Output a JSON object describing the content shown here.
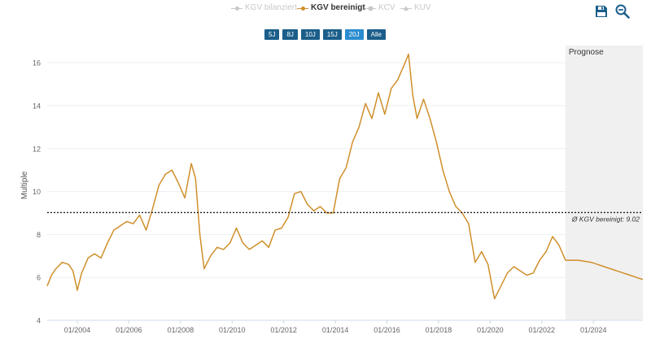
{
  "legend": [
    {
      "label": "KGV bilanziert",
      "active": false,
      "marker": "circle"
    },
    {
      "label": "KGV bereinigt",
      "active": true,
      "marker": "circle"
    },
    {
      "label": "KCV",
      "active": false,
      "marker": "square"
    },
    {
      "label": "KUV",
      "active": false,
      "marker": "triangle"
    }
  ],
  "toolbar": {
    "save_icon": "save-icon",
    "zoom_icon": "zoom-out-icon"
  },
  "ranges": [
    "5J",
    "8J",
    "10J",
    "15J",
    "20J",
    "Alle"
  ],
  "selected_range": "20J",
  "colors": {
    "series": "#d08f2b",
    "forecast_bg": "#f0f0f0",
    "range_button": "#1b5e8a",
    "range_selected": "#2a8ccf",
    "axis": "#d9e2ee"
  },
  "chart_data": {
    "type": "line",
    "ylabel": "Multiple",
    "ylim": [
      4,
      16.8
    ],
    "xlim": [
      "2002-11",
      "2025-12"
    ],
    "yticks": [
      4,
      6,
      8,
      10,
      12,
      14,
      16
    ],
    "xtick_labels": [
      "01/2004",
      "01/2006",
      "01/2008",
      "01/2010",
      "01/2012",
      "01/2014",
      "01/2016",
      "01/2018",
      "01/2020",
      "01/2022",
      "01/2024"
    ],
    "forecast_label": "Prognose",
    "forecast_start": "2022-12",
    "average": {
      "label": "Ø KGV bereinigt: 9.02",
      "value": 9.02
    },
    "grid": true,
    "series": [
      {
        "name": "KGV bereinigt",
        "x": [
          "2002-11",
          "2003-01",
          "2003-03",
          "2003-06",
          "2003-09",
          "2003-11",
          "2004-01",
          "2004-03",
          "2004-06",
          "2004-09",
          "2004-12",
          "2005-03",
          "2005-06",
          "2005-09",
          "2005-12",
          "2006-03",
          "2006-06",
          "2006-09",
          "2006-12",
          "2007-03",
          "2007-06",
          "2007-09",
          "2007-12",
          "2008-03",
          "2008-06",
          "2008-08",
          "2008-10",
          "2008-12",
          "2009-03",
          "2009-06",
          "2009-09",
          "2009-12",
          "2010-03",
          "2010-06",
          "2010-09",
          "2010-12",
          "2011-03",
          "2011-06",
          "2011-09",
          "2011-12",
          "2012-03",
          "2012-06",
          "2012-09",
          "2012-12",
          "2013-03",
          "2013-06",
          "2013-09",
          "2013-12",
          "2014-03",
          "2014-06",
          "2014-09",
          "2014-12",
          "2015-03",
          "2015-06",
          "2015-09",
          "2015-12",
          "2016-03",
          "2016-06",
          "2016-09",
          "2016-11",
          "2017-01",
          "2017-03",
          "2017-06",
          "2017-09",
          "2017-12",
          "2018-03",
          "2018-06",
          "2018-09",
          "2018-12",
          "2019-03",
          "2019-06",
          "2019-09",
          "2019-12",
          "2020-03",
          "2020-06",
          "2020-09",
          "2020-12",
          "2021-03",
          "2021-06",
          "2021-09",
          "2021-12",
          "2022-03",
          "2022-06",
          "2022-09",
          "2022-12"
        ],
        "values": [
          5.6,
          6.1,
          6.4,
          6.7,
          6.6,
          6.3,
          5.4,
          6.2,
          6.9,
          7.1,
          6.9,
          7.6,
          8.2,
          8.4,
          8.6,
          8.5,
          8.9,
          8.2,
          9.2,
          10.3,
          10.8,
          11.0,
          10.4,
          9.7,
          11.3,
          10.6,
          8.0,
          6.4,
          7.0,
          7.4,
          7.3,
          7.6,
          8.3,
          7.6,
          7.3,
          7.5,
          7.7,
          7.4,
          8.2,
          8.3,
          8.8,
          9.9,
          10.0,
          9.4,
          9.1,
          9.3,
          9.0,
          9.0,
          10.6,
          11.1,
          12.3,
          13.0,
          14.1,
          13.4,
          14.6,
          13.6,
          14.8,
          15.2,
          15.9,
          16.4,
          14.5,
          13.4,
          14.3,
          13.4,
          12.3,
          11.0,
          10.0,
          9.3,
          9.0,
          8.5,
          6.7,
          7.2,
          6.6,
          5.0,
          5.6,
          6.2,
          6.5,
          6.3,
          6.1,
          6.2,
          6.8,
          7.2,
          7.9,
          7.5,
          6.8
        ]
      },
      {
        "name": "Prognose",
        "x": [
          "2022-12",
          "2023-01",
          "2023-06",
          "2023-12",
          "2024-03",
          "2024-06",
          "2024-09",
          "2024-12",
          "2025-03",
          "2025-06",
          "2025-09",
          "2025-12"
        ],
        "values": [
          6.8,
          6.8,
          6.8,
          6.7,
          6.6,
          6.5,
          6.4,
          6.3,
          6.2,
          6.1,
          6.0,
          5.9
        ]
      }
    ]
  }
}
